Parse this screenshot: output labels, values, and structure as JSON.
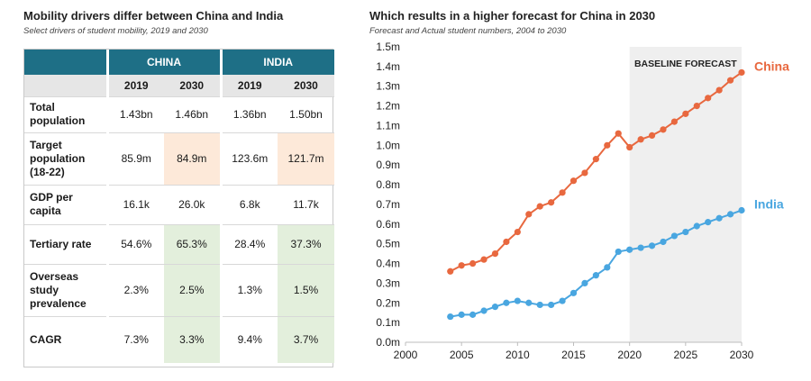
{
  "left": {
    "title": "Mobility drivers differ between China and India",
    "subtitle": "Select drivers of student mobility, 2019 and 2030",
    "table": {
      "groups": [
        "CHINA",
        "INDIA"
      ],
      "years": [
        "2019",
        "2030",
        "2019",
        "2030"
      ],
      "rows": [
        {
          "label": "Total population",
          "values": [
            "1.43bn",
            "1.46bn",
            "1.36bn",
            "1.50bn"
          ],
          "highlight": "none"
        },
        {
          "label": "Target population (18-22)",
          "values": [
            "85.9m",
            "84.9m",
            "123.6m",
            "121.7m"
          ],
          "highlight": "orange"
        },
        {
          "label": "GDP per capita",
          "values": [
            "16.1k",
            "26.0k",
            "6.8k",
            "11.7k"
          ],
          "highlight": "none"
        },
        {
          "label": "Tertiary rate",
          "values": [
            "54.6%",
            "65.3%",
            "28.4%",
            "37.3%"
          ],
          "highlight": "green"
        },
        {
          "label": "Overseas study prevalence",
          "values": [
            "2.3%",
            "2.5%",
            "1.3%",
            "1.5%"
          ],
          "highlight": "green"
        },
        {
          "label": "CAGR",
          "values": [
            "7.3%",
            "3.3%",
            "9.4%",
            "3.7%"
          ],
          "highlight": "green"
        }
      ]
    }
  },
  "chart_data": {
    "type": "line",
    "title": "Which results in a higher forecast for China in 2030",
    "subtitle": "Forecast and Actual student numbers, 2004 to 2030",
    "xlabel": "",
    "ylabel": "",
    "xlim": [
      2000,
      2030
    ],
    "ylim": [
      0,
      1.5
    ],
    "x_ticks": [
      "2000",
      "2005",
      "2010",
      "2015",
      "2020",
      "2025",
      "2030"
    ],
    "y_ticks": [
      "0.0m",
      "0.1m",
      "0.2m",
      "0.3m",
      "0.4m",
      "0.5m",
      "0.6m",
      "0.7m",
      "0.8m",
      "0.9m",
      "1.0m",
      "1.1m",
      "1.2m",
      "1.3m",
      "1.4m",
      "1.5m"
    ],
    "grid": false,
    "forecast_band": {
      "label": "BASELINE FORECAST",
      "from": 2020,
      "to": 2030,
      "color": "#efefef"
    },
    "series": [
      {
        "name": "China",
        "color": "#e8683f",
        "x": [
          2004,
          2005,
          2006,
          2007,
          2008,
          2009,
          2010,
          2011,
          2012,
          2013,
          2014,
          2015,
          2016,
          2017,
          2018,
          2019,
          2020,
          2021,
          2022,
          2023,
          2024,
          2025,
          2026,
          2027,
          2028,
          2029,
          2030
        ],
        "values": [
          0.36,
          0.39,
          0.4,
          0.42,
          0.45,
          0.51,
          0.56,
          0.65,
          0.69,
          0.71,
          0.76,
          0.82,
          0.86,
          0.93,
          1.0,
          1.06,
          0.99,
          1.03,
          1.05,
          1.08,
          1.12,
          1.16,
          1.2,
          1.24,
          1.28,
          1.33,
          1.37
        ]
      },
      {
        "name": "India",
        "color": "#49a6e0",
        "x": [
          2004,
          2005,
          2006,
          2007,
          2008,
          2009,
          2010,
          2011,
          2012,
          2013,
          2014,
          2015,
          2016,
          2017,
          2018,
          2019,
          2020,
          2021,
          2022,
          2023,
          2024,
          2025,
          2026,
          2027,
          2028,
          2029,
          2030
        ],
        "values": [
          0.13,
          0.14,
          0.14,
          0.16,
          0.18,
          0.2,
          0.21,
          0.2,
          0.19,
          0.19,
          0.21,
          0.25,
          0.3,
          0.34,
          0.38,
          0.46,
          0.47,
          0.48,
          0.49,
          0.51,
          0.54,
          0.56,
          0.59,
          0.61,
          0.63,
          0.65,
          0.67
        ]
      }
    ]
  }
}
